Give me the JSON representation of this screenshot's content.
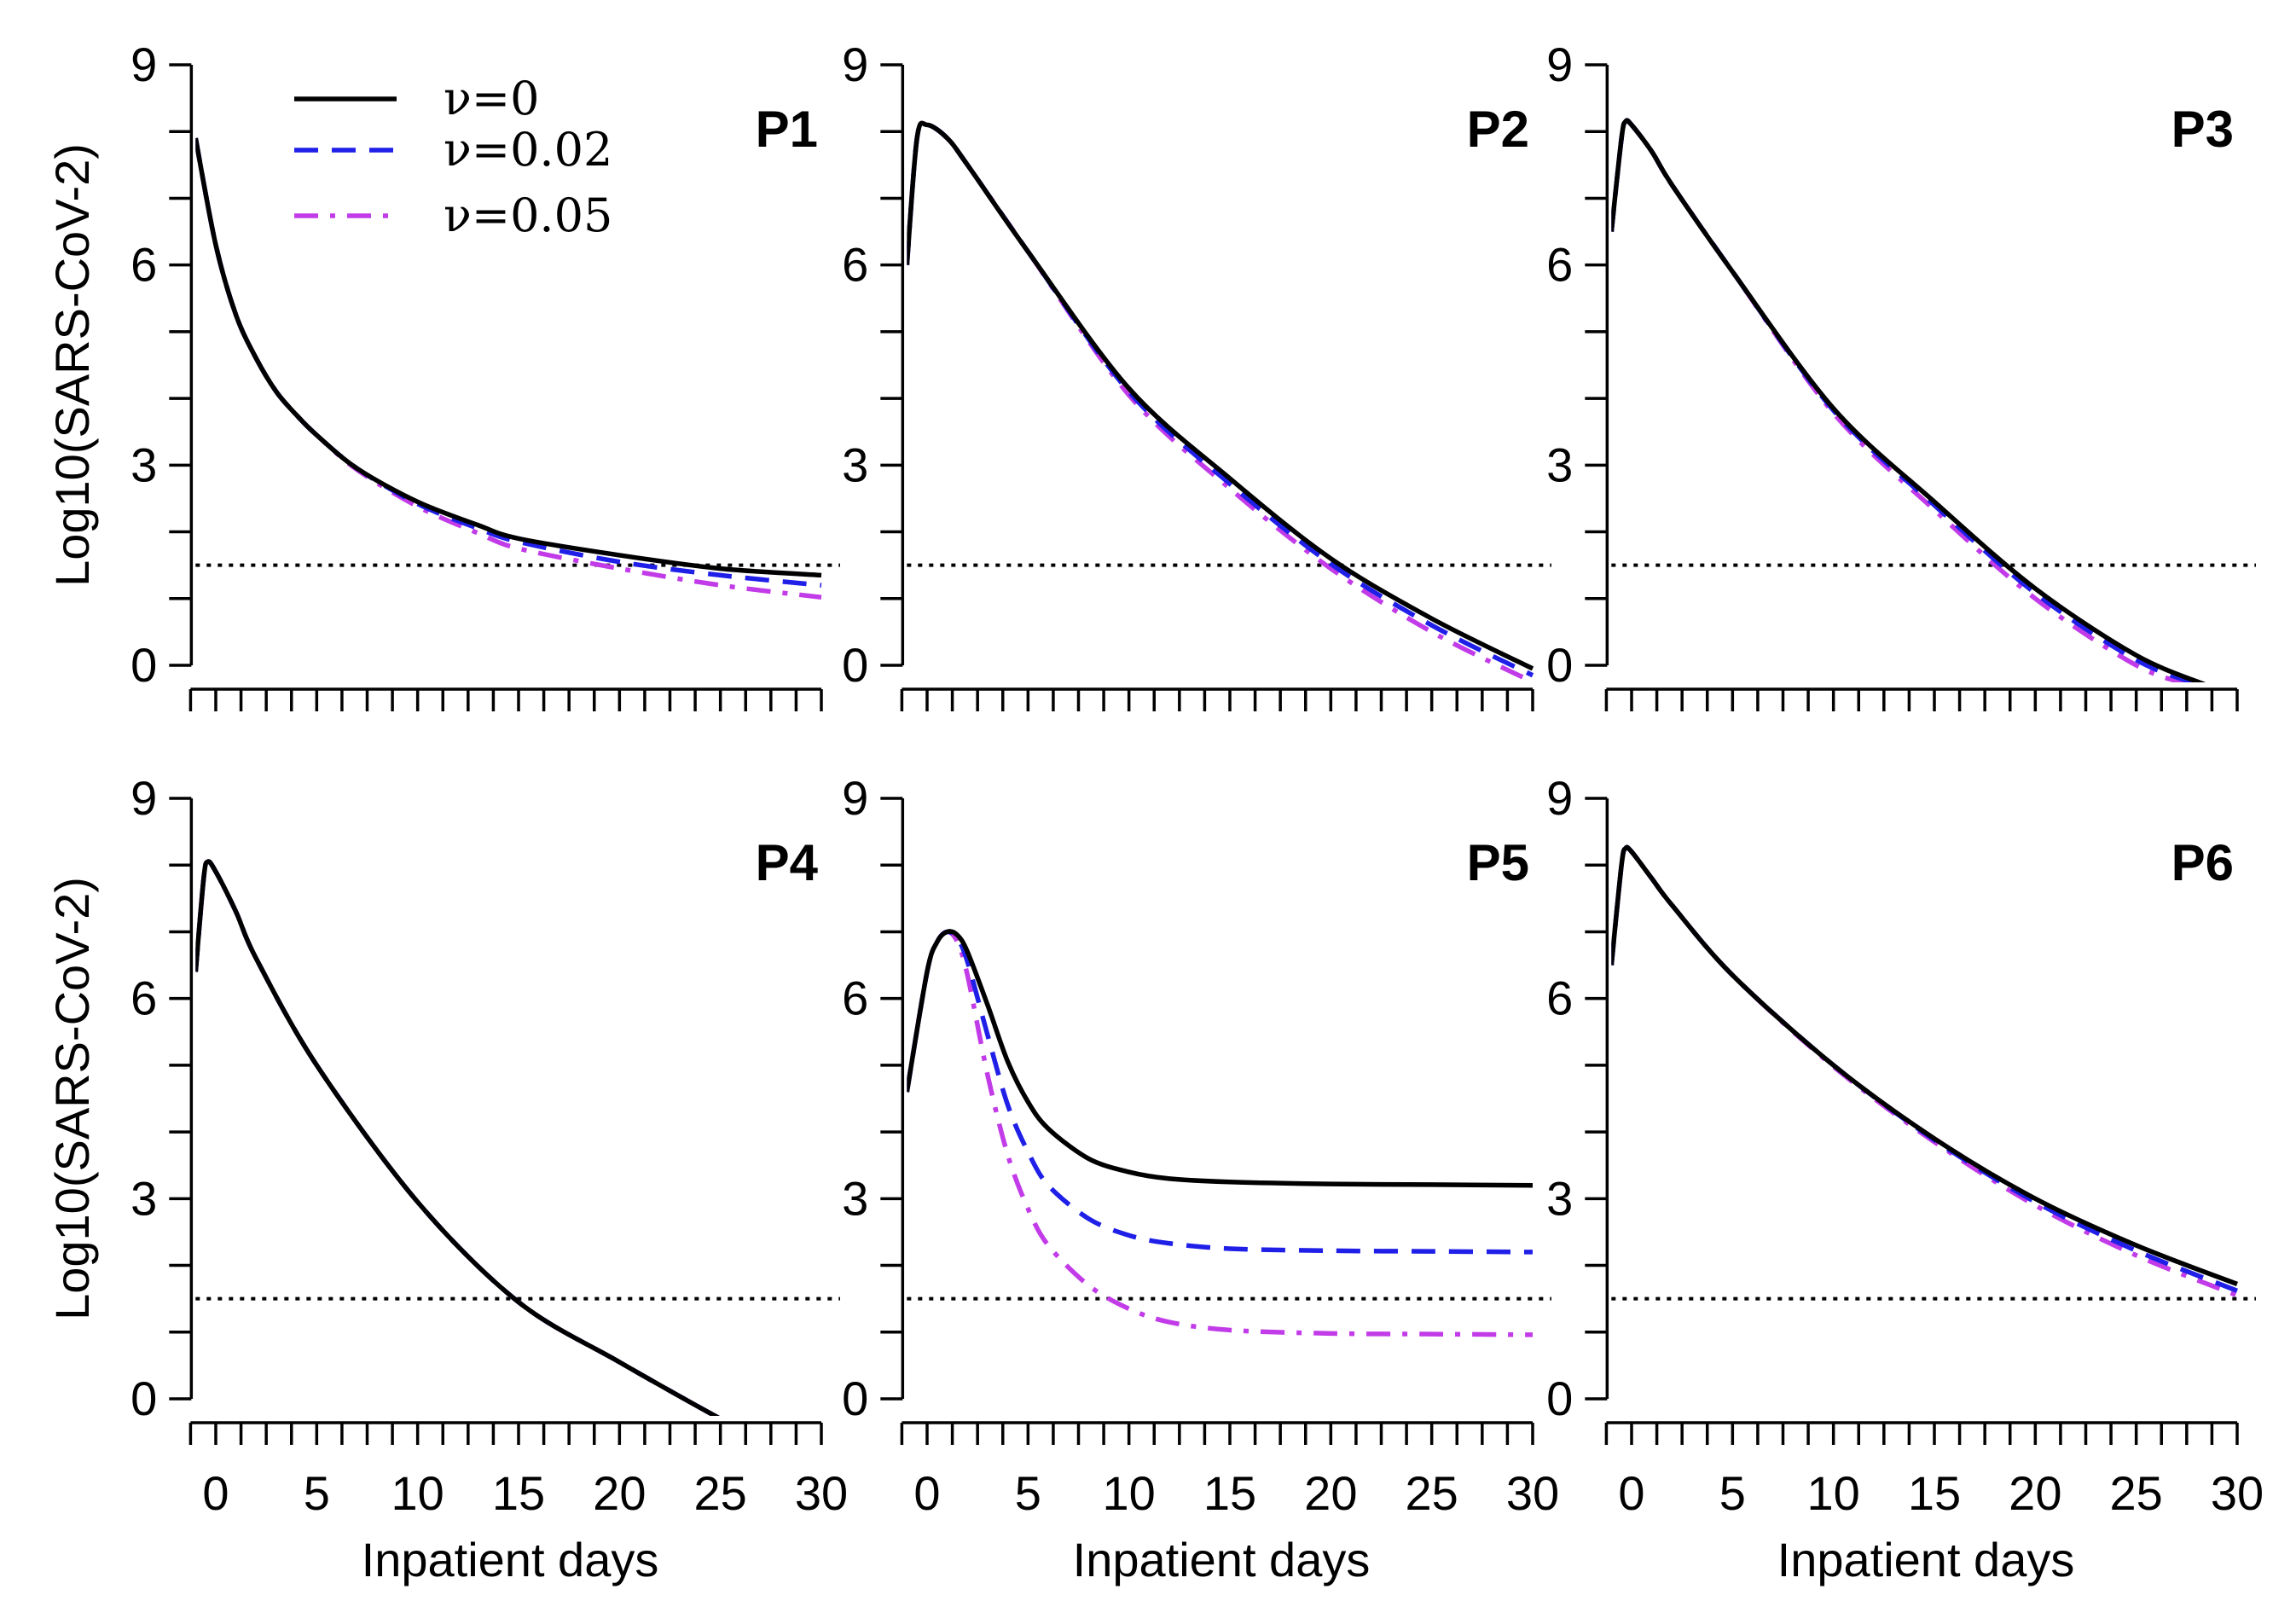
{
  "chart_data": {
    "type": "line",
    "layout": "2x3 panel grid",
    "xlabel": "Inpatient days",
    "ylabel": "Log10(SARS-CoV-2)",
    "xlim": [
      -1,
      30
    ],
    "ylim": [
      0,
      9
    ],
    "x_ticks": [
      0,
      5,
      10,
      15,
      20,
      25,
      30
    ],
    "x_minor_ticks": [
      -1.25,
      1.25,
      2.5,
      3.75,
      6.25,
      7.5,
      8.75,
      11.25,
      12.5,
      13.75,
      16.25,
      17.5,
      18.75,
      21.25,
      22.5,
      23.75,
      26.25,
      27.5,
      28.75
    ],
    "y_ticks": [
      0,
      3,
      6,
      9
    ],
    "y_minor_ticks": [
      1,
      2,
      4,
      5,
      7,
      8
    ],
    "detection_threshold": 1.5,
    "legend": {
      "position": "top-left of first panel",
      "entries": [
        {
          "label": "ν=0",
          "color": "#000000",
          "style": "solid"
        },
        {
          "label": "ν=0.02",
          "color": "#1f1fe8",
          "style": "dashed"
        },
        {
          "label": "ν=0.05",
          "color": "#c23be8",
          "style": "dashdot"
        }
      ]
    },
    "panels": [
      {
        "title": "P1",
        "series": [
          {
            "name": "ν=0",
            "x": [
              -1,
              0,
              1,
              2,
              3,
              4,
              5,
              7,
              10,
              13,
              15,
              20,
              25,
              30
            ],
            "y": [
              7.9,
              6.3,
              5.25,
              4.6,
              4.1,
              3.75,
              3.45,
              2.95,
              2.45,
              2.1,
              1.9,
              1.65,
              1.45,
              1.35
            ]
          },
          {
            "name": "ν=0.02",
            "x": [
              -1,
              0,
              1,
              2,
              3,
              4,
              5,
              7,
              10,
              13,
              15,
              20,
              25,
              30
            ],
            "y": [
              7.9,
              6.3,
              5.25,
              4.6,
              4.1,
              3.75,
              3.45,
              2.95,
              2.42,
              2.05,
              1.85,
              1.55,
              1.35,
              1.2
            ]
          },
          {
            "name": "ν=0.05",
            "x": [
              -1,
              0,
              1,
              2,
              3,
              4,
              5,
              7,
              10,
              13,
              15,
              20,
              25,
              30
            ],
            "y": [
              7.9,
              6.3,
              5.25,
              4.6,
              4.1,
              3.75,
              3.45,
              2.93,
              2.38,
              1.98,
              1.75,
              1.45,
              1.2,
              1.02
            ]
          }
        ]
      },
      {
        "title": "P2",
        "series": [
          {
            "name": "ν=0",
            "x": [
              -1,
              -0.5,
              0,
              1,
              2,
              5,
              10,
              15,
              20,
              25,
              30
            ],
            "y": [
              6.0,
              7.9,
              8.1,
              7.9,
              7.5,
              6.2,
              4.15,
              2.8,
              1.6,
              0.7,
              -0.05
            ]
          },
          {
            "name": "ν=0.02",
            "x": [
              -1,
              -0.5,
              0,
              1,
              2,
              5,
              10,
              15,
              20,
              25,
              30
            ],
            "y": [
              6.0,
              7.9,
              8.1,
              7.9,
              7.5,
              6.2,
              4.1,
              2.72,
              1.52,
              0.6,
              -0.15
            ]
          },
          {
            "name": "ν=0.05",
            "x": [
              -1,
              -0.5,
              0,
              1,
              2,
              5,
              10,
              15,
              20,
              25,
              30
            ],
            "y": [
              6.0,
              7.9,
              8.1,
              7.9,
              7.5,
              6.2,
              4.05,
              2.65,
              1.45,
              0.5,
              -0.25
            ]
          }
        ]
      },
      {
        "title": "P3",
        "series": [
          {
            "name": "ν=0",
            "x": [
              -1,
              -0.5,
              -0.3,
              0,
              1,
              2,
              5,
              10,
              15,
              20,
              25,
              28.5
            ],
            "y": [
              6.5,
              7.9,
              8.15,
              8.1,
              7.7,
              7.2,
              5.9,
              3.85,
              2.45,
              1.15,
              0.15,
              -0.3
            ]
          },
          {
            "name": "ν=0.02",
            "x": [
              -1,
              -0.5,
              -0.3,
              0,
              1,
              2,
              5,
              10,
              15,
              20,
              25,
              28.2
            ],
            "y": [
              6.5,
              7.9,
              8.15,
              8.1,
              7.7,
              7.2,
              5.9,
              3.82,
              2.4,
              1.08,
              0.08,
              -0.3
            ]
          },
          {
            "name": "ν=0.05",
            "x": [
              -1,
              -0.5,
              -0.3,
              0,
              1,
              2,
              5,
              10,
              15,
              20,
              25,
              27.8
            ],
            "y": [
              6.5,
              7.9,
              8.15,
              8.1,
              7.7,
              7.2,
              5.9,
              3.78,
              2.33,
              1.0,
              0.0,
              -0.3
            ]
          }
        ]
      },
      {
        "title": "P4",
        "series": [
          {
            "name": "ν=0",
            "x": [
              -1,
              -0.6,
              -0.4,
              0,
              1,
              2,
              5,
              10,
              15,
              20,
              25,
              25.5
            ],
            "y": [
              6.4,
              7.8,
              8.05,
              7.9,
              7.3,
              6.6,
              5.0,
              2.95,
              1.45,
              0.55,
              -0.3,
              -0.35
            ]
          },
          {
            "name": "ν=0.02",
            "x": [
              -1,
              -0.6,
              -0.4,
              0,
              1,
              2,
              5,
              10,
              15,
              20,
              25,
              25.5
            ],
            "y": [
              6.4,
              7.8,
              8.05,
              7.9,
              7.3,
              6.6,
              5.0,
              2.95,
              1.45,
              0.55,
              -0.3,
              -0.35
            ]
          },
          {
            "name": "ν=0.05",
            "x": [
              -1,
              -0.6,
              -0.4,
              0,
              1,
              2,
              5,
              10,
              15,
              20,
              25,
              25.5
            ],
            "y": [
              6.4,
              7.8,
              8.05,
              7.9,
              7.3,
              6.6,
              5.0,
              2.95,
              1.45,
              0.55,
              -0.3,
              -0.35
            ]
          }
        ]
      },
      {
        "title": "P5",
        "series": [
          {
            "name": "ν=0",
            "x": [
              -1,
              0,
              0.5,
              1,
              1.5,
              2,
              3,
              4,
              5,
              6,
              8,
              10,
              12,
              15,
              20,
              25,
              30
            ],
            "y": [
              4.6,
              6.4,
              6.85,
              7.0,
              6.95,
              6.7,
              5.9,
              5.05,
              4.45,
              4.05,
              3.6,
              3.4,
              3.3,
              3.25,
              3.22,
              3.21,
              3.2
            ]
          },
          {
            "name": "ν=0.02",
            "x": [
              -1,
              0,
              0.5,
              1,
              1.5,
              2,
              3,
              4,
              5,
              6,
              8,
              10,
              12,
              15,
              20,
              25,
              30
            ],
            "y": [
              4.6,
              6.4,
              6.85,
              7.0,
              6.9,
              6.55,
              5.45,
              4.4,
              3.7,
              3.2,
              2.7,
              2.45,
              2.33,
              2.25,
              2.22,
              2.21,
              2.2
            ]
          },
          {
            "name": "ν=0.05",
            "x": [
              -1,
              0,
              0.5,
              1,
              1.5,
              2,
              3,
              4,
              5,
              6,
              8,
              10,
              12,
              15,
              20,
              25,
              30
            ],
            "y": [
              4.6,
              6.4,
              6.85,
              7.0,
              6.85,
              6.35,
              4.85,
              3.65,
              2.85,
              2.3,
              1.7,
              1.35,
              1.15,
              1.03,
              0.98,
              0.97,
              0.96
            ]
          }
        ]
      },
      {
        "title": "P6",
        "series": [
          {
            "name": "ν=0",
            "x": [
              -1,
              -0.5,
              -0.3,
              0,
              1,
              2,
              5,
              10,
              15,
              20,
              25,
              30
            ],
            "y": [
              6.5,
              8.0,
              8.25,
              8.2,
              7.8,
              7.4,
              6.35,
              5.0,
              3.9,
              3.0,
              2.3,
              1.72
            ]
          },
          {
            "name": "ν=0.02",
            "x": [
              -1,
              -0.5,
              -0.3,
              0,
              1,
              2,
              5,
              10,
              15,
              20,
              25,
              30
            ],
            "y": [
              6.5,
              8.0,
              8.25,
              8.2,
              7.8,
              7.4,
              6.35,
              5.0,
              3.88,
              2.95,
              2.22,
              1.62
            ]
          },
          {
            "name": "ν=0.05",
            "x": [
              -1,
              -0.5,
              -0.3,
              0,
              1,
              2,
              5,
              10,
              15,
              20,
              25,
              30
            ],
            "y": [
              6.5,
              8.0,
              8.25,
              8.2,
              7.8,
              7.4,
              6.35,
              4.98,
              3.85,
              2.9,
              2.15,
              1.55
            ]
          }
        ]
      }
    ]
  }
}
